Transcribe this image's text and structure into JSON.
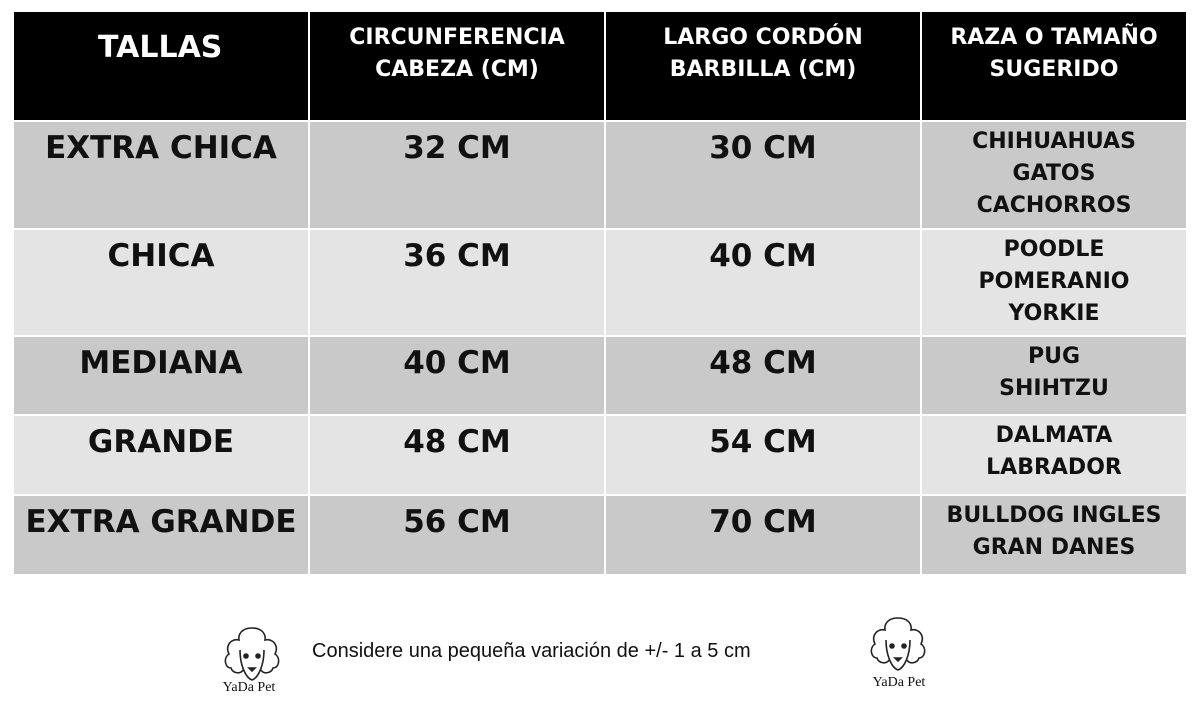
{
  "table": {
    "header": [
      [
        "TALLAS"
      ],
      [
        "CIRCUNFERENCIA",
        "CABEZA (CM)"
      ],
      [
        "LARGO CORDÓN",
        "BARBILLA (CM)"
      ],
      [
        "RAZA O TAMAÑO",
        "SUGERIDO"
      ]
    ],
    "rows": [
      [
        "EXTRA CHICA",
        "32 CM",
        "30 CM",
        [
          "CHIHUAHUAS",
          "GATOS",
          "CACHORROS"
        ]
      ],
      [
        "CHICA",
        "36 CM",
        "40 CM",
        [
          "POODLE",
          "POMERANIO",
          "YORKIE"
        ]
      ],
      [
        "MEDIANA",
        "40 CM",
        "48 CM",
        [
          "PUG",
          "SHIHTZU"
        ]
      ],
      [
        "GRANDE",
        "48 CM",
        "54 CM",
        [
          "DALMATA",
          "LABRADOR"
        ]
      ],
      [
        "EXTRA GRANDE",
        "56 CM",
        "70 CM",
        [
          "BULLDOG INGLES",
          "GRAN DANES"
        ]
      ]
    ]
  },
  "footer": {
    "note": "Considere una pequeña variación de +/- 1 a 5 cm",
    "logos": [
      "YaDa Pet",
      "YaDa Pet"
    ]
  }
}
